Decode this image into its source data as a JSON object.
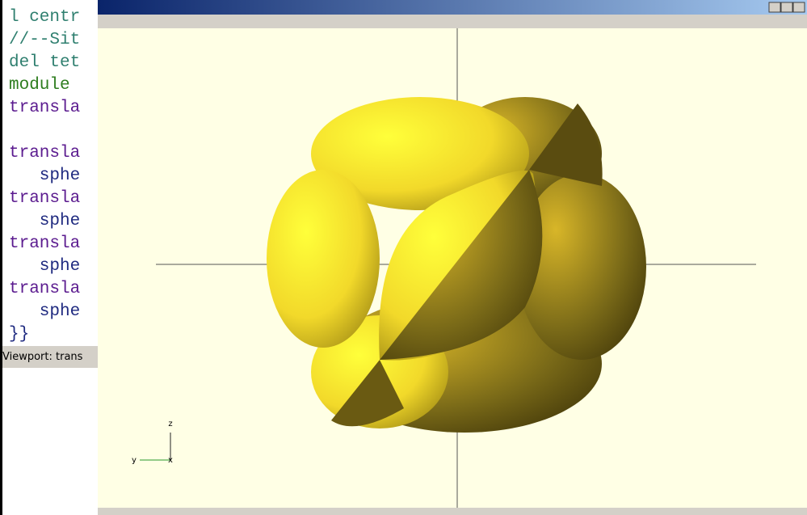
{
  "editor": {
    "lines": [
      "l centr",
      "//--Sit",
      "del tet",
      "module ",
      "transla",
      "transla",
      "   sphe",
      "transla",
      "   sphe",
      "transla",
      "   sphe",
      "transla",
      "   sphe",
      "}}"
    ]
  },
  "console": {
    "text": "Viewport: trans"
  },
  "axes": {
    "z": "z",
    "y": "y",
    "x": "x"
  }
}
